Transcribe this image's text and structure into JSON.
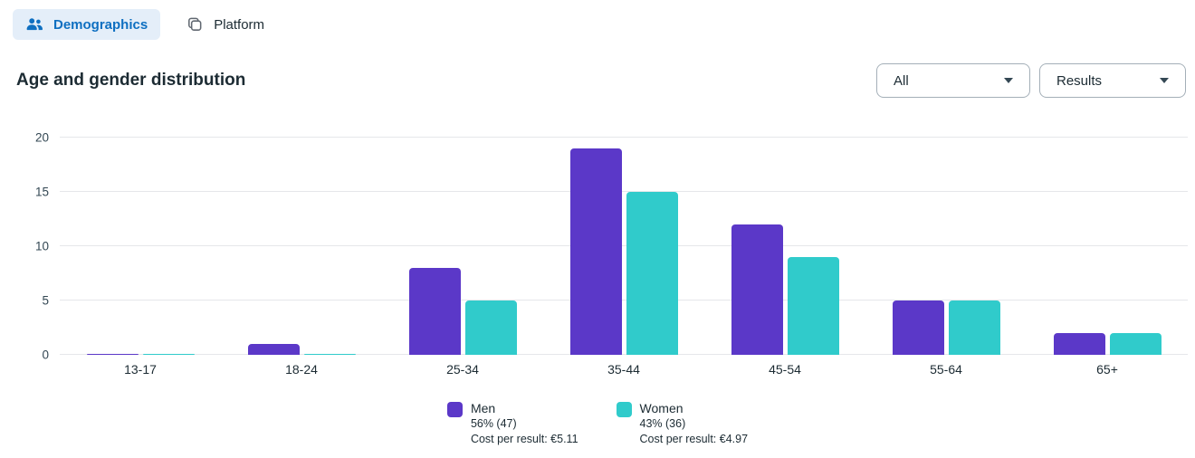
{
  "tabs": [
    {
      "label": "Demographics",
      "active": true
    },
    {
      "label": "Platform",
      "active": false
    }
  ],
  "header": {
    "title": "Age and gender distribution"
  },
  "filters": {
    "breakdown": {
      "value": "All"
    },
    "metric": {
      "value": "Results"
    }
  },
  "colors": {
    "men": "#5B38C8",
    "women": "#30CBCB",
    "tab_active_bg": "#E4EEF9",
    "tab_active_text": "#0E6FC1",
    "gridline": "#E5E7EA",
    "text_dark": "#1C2B33",
    "text_secondary": "#344854",
    "dropdown_border": "#A4AFB8"
  },
  "chart_data": {
    "type": "bar",
    "title": "Age and gender distribution",
    "categories": [
      "13-17",
      "18-24",
      "25-34",
      "35-44",
      "45-54",
      "55-64",
      "65+"
    ],
    "series": [
      {
        "name": "Men",
        "color": "#5B38C8",
        "values": [
          0.1,
          1,
          8,
          19,
          12,
          5,
          2
        ],
        "share": "56% (47)",
        "cost_per_result": "Cost per result: €5.11"
      },
      {
        "name": "Women",
        "color": "#30CBCB",
        "values": [
          0.1,
          0.1,
          5,
          15,
          9,
          5,
          2
        ],
        "share": "43% (36)",
        "cost_per_result": "Cost per result: €4.97"
      }
    ],
    "xlabel": "",
    "ylabel": "",
    "ylim": [
      0,
      20
    ],
    "yticks": [
      0,
      5,
      10,
      15,
      20
    ],
    "grid": true,
    "legend_position": "bottom"
  }
}
